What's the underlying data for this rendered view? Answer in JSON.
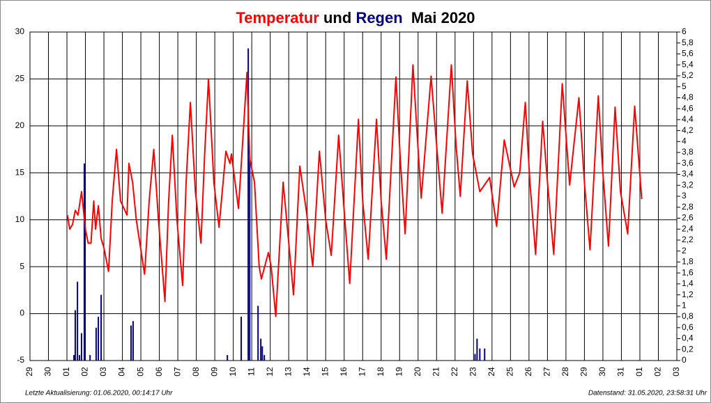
{
  "chart_data": {
    "type": "line",
    "title": "Mai 2020",
    "title_connector": "und",
    "footer_left": "Letzte Aktualisierung: 01.06.2020, 00:14:17 Uhr",
    "footer_right": "Datenstand: 31.05.2020, 23:58:31 Uhr",
    "grid": true,
    "xlim": [
      0,
      35
    ],
    "xticks": [
      {
        "value": 0,
        "label": "29"
      },
      {
        "value": 1,
        "label": "30"
      },
      {
        "value": 2,
        "label": "01"
      },
      {
        "value": 3,
        "label": "02"
      },
      {
        "value": 4,
        "label": "03"
      },
      {
        "value": 5,
        "label": "04"
      },
      {
        "value": 6,
        "label": "05"
      },
      {
        "value": 7,
        "label": "06"
      },
      {
        "value": 8,
        "label": "07"
      },
      {
        "value": 9,
        "label": "08"
      },
      {
        "value": 10,
        "label": "09"
      },
      {
        "value": 11,
        "label": "10"
      },
      {
        "value": 12,
        "label": "11"
      },
      {
        "value": 13,
        "label": "12"
      },
      {
        "value": 14,
        "label": "13"
      },
      {
        "value": 15,
        "label": "14"
      },
      {
        "value": 16,
        "label": "15"
      },
      {
        "value": 17,
        "label": "16"
      },
      {
        "value": 18,
        "label": "17"
      },
      {
        "value": 19,
        "label": "18"
      },
      {
        "value": 20,
        "label": "19"
      },
      {
        "value": 21,
        "label": "20"
      },
      {
        "value": 22,
        "label": "21"
      },
      {
        "value": 23,
        "label": "22"
      },
      {
        "value": 24,
        "label": "23"
      },
      {
        "value": 25,
        "label": "24"
      },
      {
        "value": 26,
        "label": "25"
      },
      {
        "value": 27,
        "label": "26"
      },
      {
        "value": 28,
        "label": "27"
      },
      {
        "value": 29,
        "label": "28"
      },
      {
        "value": 30,
        "label": "29"
      },
      {
        "value": 31,
        "label": "30"
      },
      {
        "value": 32,
        "label": "31"
      },
      {
        "value": 33,
        "label": "01"
      },
      {
        "value": 34,
        "label": "02"
      },
      {
        "value": 35,
        "label": "03"
      }
    ],
    "ylim": [
      -5,
      30
    ],
    "yticks": [
      -5,
      0,
      5,
      10,
      15,
      20,
      25,
      30
    ],
    "y2lim": [
      0,
      6
    ],
    "y2ticks": [
      0,
      {
        "value": 0.2,
        "label": "0,2"
      },
      {
        "value": 0.4,
        "label": "0,4"
      },
      {
        "value": 0.6,
        "label": "0,6"
      },
      {
        "value": 0.8,
        "label": "0,8"
      },
      1,
      {
        "value": 1.2,
        "label": "1,2"
      },
      {
        "value": 1.4,
        "label": "1,4"
      },
      {
        "value": 1.6,
        "label": "1,6"
      },
      {
        "value": 1.8,
        "label": "1,8"
      },
      2,
      {
        "value": 2.2,
        "label": "2,2"
      },
      {
        "value": 2.4,
        "label": "2,4"
      },
      {
        "value": 2.6,
        "label": "2,6"
      },
      {
        "value": 2.8,
        "label": "2,8"
      },
      3,
      {
        "value": 3.2,
        "label": "3,2"
      },
      {
        "value": 3.4,
        "label": "3,4"
      },
      {
        "value": 3.6,
        "label": "3,6"
      },
      {
        "value": 3.8,
        "label": "3,8"
      },
      4,
      {
        "value": 4.2,
        "label": "4,2"
      },
      {
        "value": 4.4,
        "label": "4,4"
      },
      {
        "value": 4.6,
        "label": "4,6"
      },
      {
        "value": 4.8,
        "label": "4,8"
      },
      5,
      {
        "value": 5.2,
        "label": "5,2"
      },
      {
        "value": 5.4,
        "label": "5,4"
      },
      {
        "value": 5.6,
        "label": "5,6"
      },
      {
        "value": 5.8,
        "label": "5,8"
      },
      6
    ],
    "series": [
      {
        "name": "Regen",
        "type": "bar",
        "axis": "y2",
        "color": "#000080",
        "x": [
          2.38,
          2.45,
          2.57,
          2.68,
          2.79,
          2.94,
          3.25,
          3.58,
          3.7,
          3.85,
          5.47,
          5.58,
          10.68,
          11.43,
          11.81,
          11.89,
          12.34,
          12.49,
          12.57,
          12.68,
          24.08,
          24.19,
          24.34,
          24.6
        ],
        "values": [
          0.1,
          0.92,
          1.44,
          0.1,
          0.5,
          3.6,
          0.1,
          0.6,
          0.8,
          1.2,
          0.64,
          0.72,
          0.1,
          0.8,
          5.7,
          3.72,
          1.0,
          0.4,
          0.26,
          0.1,
          0.12,
          0.4,
          0.22,
          0.22
        ]
      },
      {
        "name": "Temperatur",
        "type": "line",
        "color": "#ff0000",
        "x": [
          2.03,
          2.15,
          2.3,
          2.45,
          2.6,
          2.79,
          3.0,
          3.15,
          3.3,
          3.45,
          3.55,
          3.7,
          3.85,
          4.0,
          4.25,
          4.45,
          4.68,
          4.9,
          5.25,
          5.35,
          5.55,
          5.75,
          6.2,
          6.45,
          6.7,
          6.95,
          7.3,
          7.5,
          7.7,
          7.95,
          8.26,
          8.45,
          8.68,
          8.95,
          9.25,
          9.45,
          9.66,
          9.95,
          10.23,
          10.6,
          10.82,
          10.9,
          11.28,
          11.5,
          11.74,
          11.89,
          12.15,
          12.4,
          12.52,
          12.9,
          13.05,
          13.3,
          13.7,
          14.26,
          14.6,
          14.95,
          15.3,
          15.66,
          16.0,
          16.3,
          16.7,
          17.0,
          17.3,
          17.77,
          18.0,
          18.3,
          18.75,
          19.0,
          19.28,
          19.8,
          20.05,
          20.3,
          20.72,
          20.95,
          21.17,
          21.7,
          22.0,
          22.3,
          22.8,
          23.05,
          23.28,
          23.66,
          23.95,
          24.34,
          24.87,
          25.25,
          25.66,
          26.2,
          26.5,
          26.8,
          27.05,
          27.36,
          27.74,
          28.0,
          28.34,
          28.8,
          29.2,
          29.7,
          30.0,
          30.3,
          30.75,
          31.0,
          31.3,
          31.66,
          31.95,
          32.34,
          32.72,
          33.1
        ],
        "values": [
          10.5,
          9,
          9.5,
          11,
          10.5,
          13,
          9,
          7.5,
          7.5,
          12,
          9,
          11.5,
          8,
          7,
          4.5,
          12,
          17.5,
          12,
          10.5,
          16,
          14,
          10,
          4.2,
          12,
          17.5,
          10,
          1.3,
          12,
          19,
          10,
          3,
          14,
          22.5,
          13,
          7.5,
          17,
          25,
          14,
          9.2,
          17.3,
          16,
          17,
          11.2,
          18,
          25.7,
          16.5,
          14,
          5,
          3.7,
          6.5,
          5,
          -0.3,
          14,
          2,
          15.7,
          11,
          5,
          17.3,
          10,
          6.2,
          19,
          11,
          3.2,
          20.7,
          12,
          5.8,
          20.7,
          12,
          5.8,
          25.2,
          16,
          8.5,
          26.5,
          19,
          12.3,
          25.3,
          18,
          10.7,
          26.5,
          18,
          12.5,
          24.8,
          17,
          13,
          14.5,
          9.3,
          18.5,
          13.5,
          15,
          22.5,
          14,
          6.3,
          20.5,
          14,
          6.3,
          24.5,
          13.7,
          23,
          14,
          6.8,
          23.2,
          15,
          7.2,
          22,
          13,
          8.5,
          22.1,
          12.2
        ]
      }
    ]
  }
}
